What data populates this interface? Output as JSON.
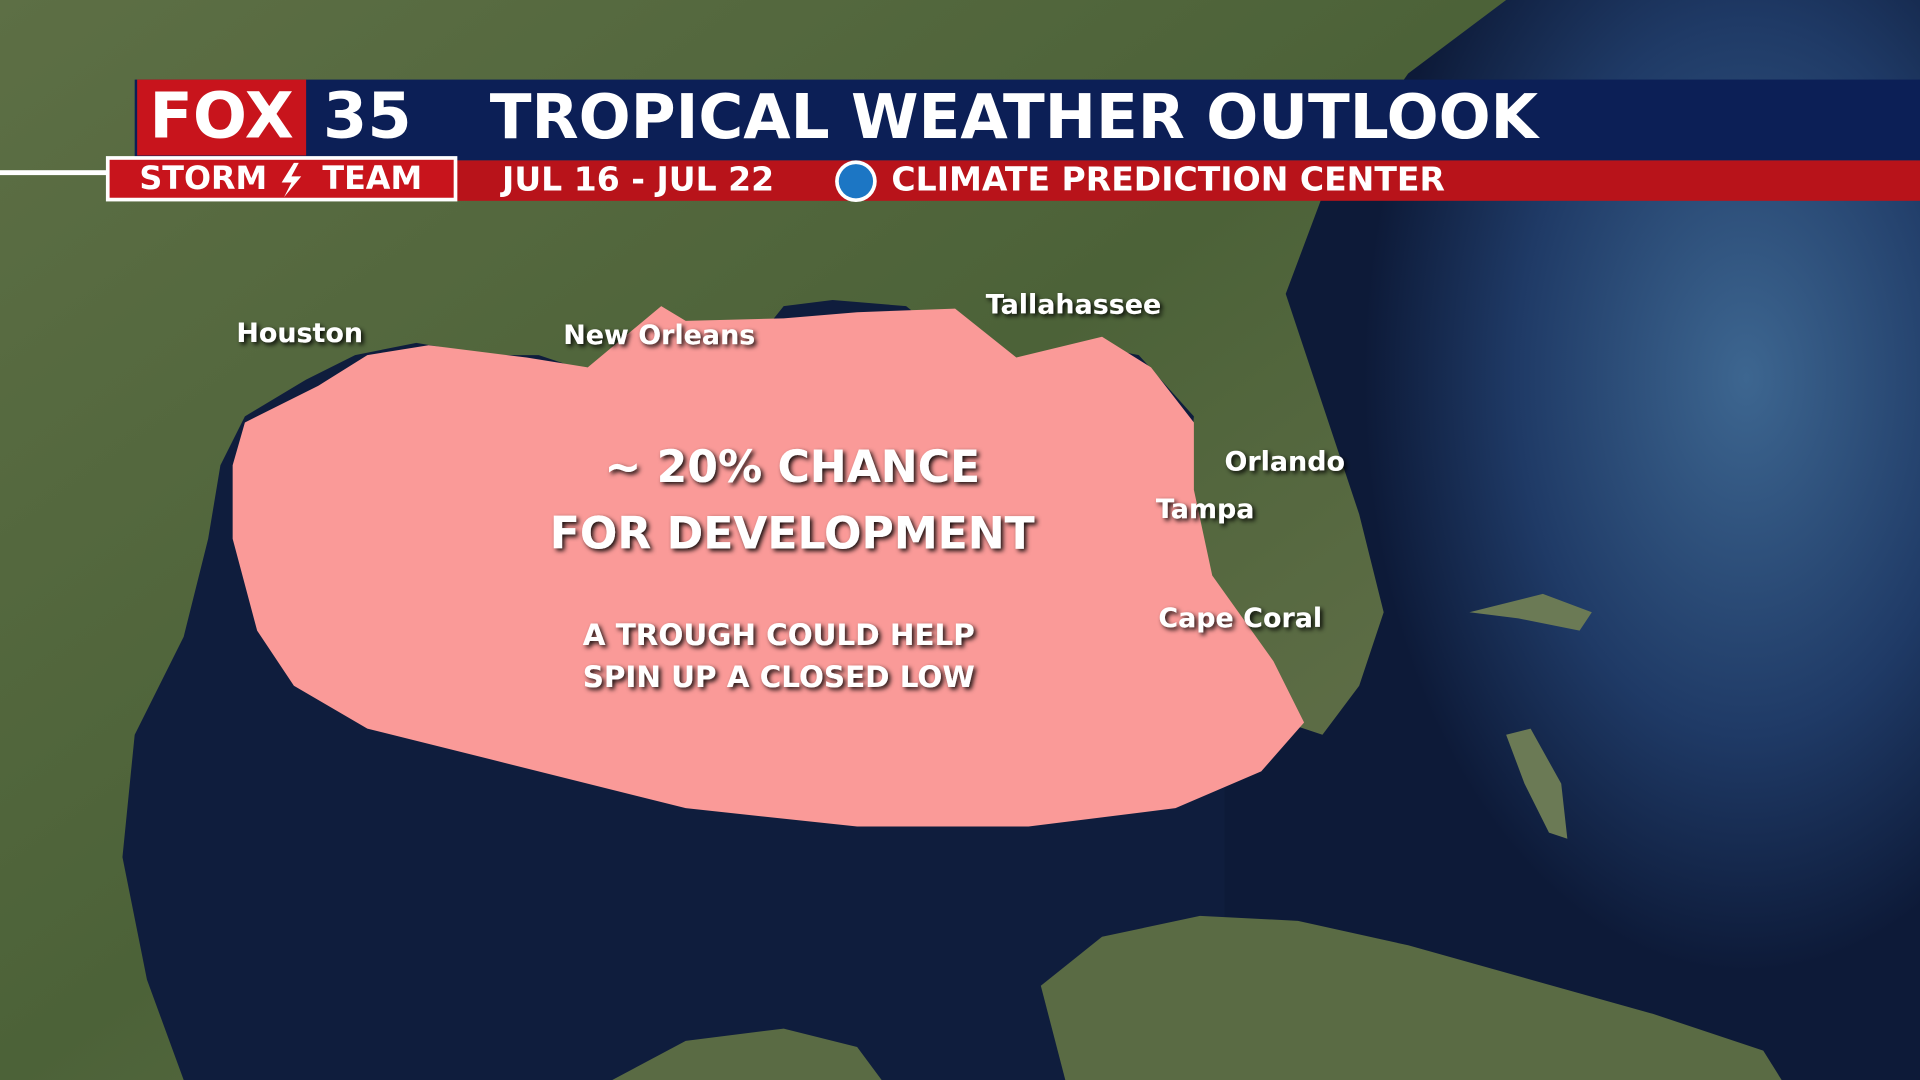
{
  "header": {
    "logo": {
      "brand": "FOX",
      "number": "35",
      "team_left": "STORM",
      "team_right": "TEAM"
    },
    "title": "TROPICAL WEATHER OUTLOOK",
    "dates": "JUL 16 - JUL 22",
    "source": "CLIMATE PREDICTION CENTER"
  },
  "cities": [
    {
      "name": "Houston"
    },
    {
      "name": "New Orleans"
    },
    {
      "name": "Tallahassee"
    },
    {
      "name": "Orlando"
    },
    {
      "name": "Tampa"
    },
    {
      "name": "Cape Coral"
    }
  ],
  "outlook": {
    "headline": [
      "~ 20% CHANCE",
      "FOR DEVELOPMENT"
    ],
    "note": [
      "A TROUGH COULD HELP",
      "SPIN UP A CLOSED LOW"
    ]
  }
}
